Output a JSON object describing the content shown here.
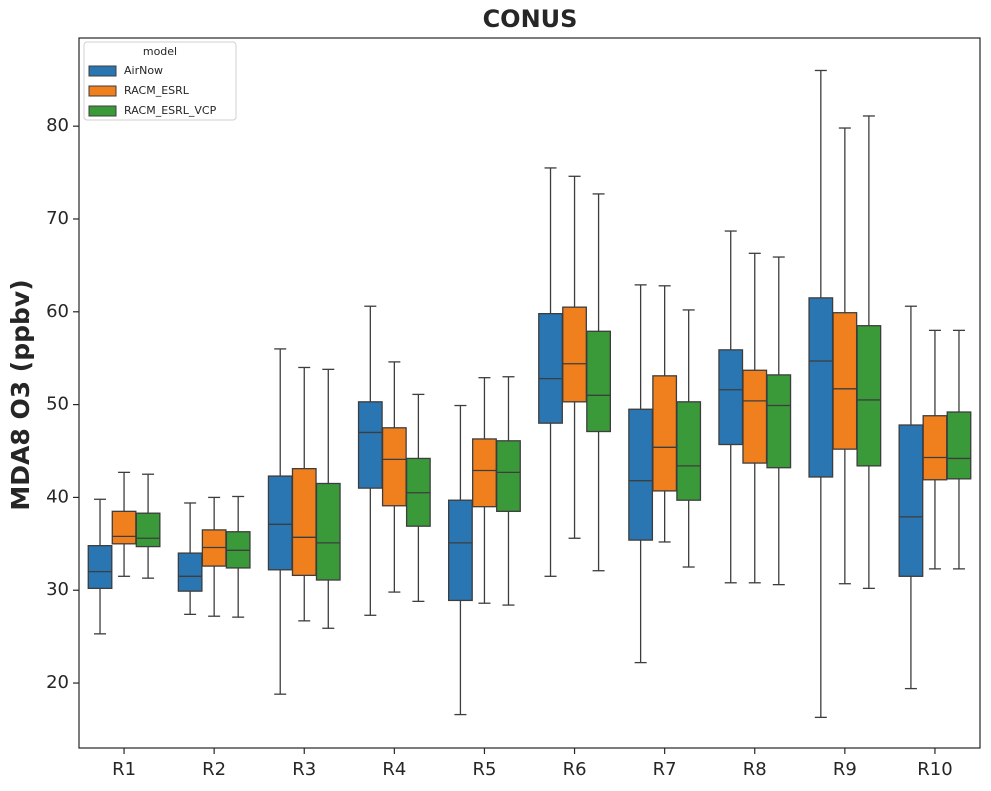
{
  "chart_data": {
    "type": "box",
    "title": "CONUS",
    "ylabel": "MDA8 O3 (ppbv)",
    "legend_title": "model",
    "legend_loc": "upper left",
    "categories": [
      "R1",
      "R2",
      "R3",
      "R4",
      "R5",
      "R6",
      "R7",
      "R8",
      "R9",
      "R10"
    ],
    "ylim": [
      13.0,
      89.5
    ],
    "yticks": [
      20,
      30,
      40,
      50,
      60,
      70,
      80
    ],
    "series": [
      {
        "name": "AirNow",
        "color": "#2a76b2",
        "boxes": [
          {
            "whislo": 25.3,
            "q1": 30.2,
            "med": 32.0,
            "q3": 34.8,
            "whishi": 39.8
          },
          {
            "whislo": 27.4,
            "q1": 29.9,
            "med": 31.5,
            "q3": 34.0,
            "whishi": 39.4
          },
          {
            "whislo": 18.8,
            "q1": 32.2,
            "med": 37.1,
            "q3": 42.3,
            "whishi": 56.0
          },
          {
            "whislo": 27.3,
            "q1": 41.0,
            "med": 47.0,
            "q3": 50.3,
            "whishi": 60.6
          },
          {
            "whislo": 16.6,
            "q1": 28.9,
            "med": 35.1,
            "q3": 39.7,
            "whishi": 49.9
          },
          {
            "whislo": 31.5,
            "q1": 48.0,
            "med": 52.8,
            "q3": 59.8,
            "whishi": 75.5
          },
          {
            "whislo": 22.2,
            "q1": 35.4,
            "med": 41.8,
            "q3": 49.5,
            "whishi": 62.9
          },
          {
            "whislo": 30.8,
            "q1": 45.7,
            "med": 51.6,
            "q3": 55.9,
            "whishi": 68.7
          },
          {
            "whislo": 16.3,
            "q1": 42.2,
            "med": 54.7,
            "q3": 61.5,
            "whishi": 86.0
          },
          {
            "whislo": 19.4,
            "q1": 31.5,
            "med": 37.9,
            "q3": 47.8,
            "whishi": 60.6
          }
        ]
      },
      {
        "name": "RACM_ESRL",
        "color": "#f0801e",
        "boxes": [
          {
            "whislo": 31.5,
            "q1": 35.0,
            "med": 35.8,
            "q3": 38.5,
            "whishi": 42.7
          },
          {
            "whislo": 27.2,
            "q1": 32.6,
            "med": 34.6,
            "q3": 36.5,
            "whishi": 40.0
          },
          {
            "whislo": 26.7,
            "q1": 31.6,
            "med": 35.7,
            "q3": 43.1,
            "whishi": 54.0
          },
          {
            "whislo": 29.8,
            "q1": 39.1,
            "med": 44.1,
            "q3": 47.5,
            "whishi": 54.6
          },
          {
            "whislo": 28.6,
            "q1": 39.0,
            "med": 42.9,
            "q3": 46.3,
            "whishi": 52.9
          },
          {
            "whislo": 35.6,
            "q1": 50.3,
            "med": 54.4,
            "q3": 60.5,
            "whishi": 74.6
          },
          {
            "whislo": 35.2,
            "q1": 40.7,
            "med": 45.4,
            "q3": 53.1,
            "whishi": 62.8
          },
          {
            "whislo": 30.8,
            "q1": 43.7,
            "med": 50.4,
            "q3": 53.7,
            "whishi": 66.3
          },
          {
            "whislo": 30.7,
            "q1": 45.2,
            "med": 51.7,
            "q3": 59.9,
            "whishi": 79.8
          },
          {
            "whislo": 32.3,
            "q1": 41.9,
            "med": 44.3,
            "q3": 48.8,
            "whishi": 58.0
          }
        ]
      },
      {
        "name": "RACM_ESRL_VCP",
        "color": "#3a9a3a",
        "boxes": [
          {
            "whislo": 31.3,
            "q1": 34.7,
            "med": 35.6,
            "q3": 38.3,
            "whishi": 42.5
          },
          {
            "whislo": 27.1,
            "q1": 32.4,
            "med": 34.3,
            "q3": 36.3,
            "whishi": 40.1
          },
          {
            "whislo": 25.9,
            "q1": 31.1,
            "med": 35.1,
            "q3": 41.5,
            "whishi": 53.8
          },
          {
            "whislo": 28.8,
            "q1": 36.9,
            "med": 40.5,
            "q3": 44.2,
            "whishi": 51.1
          },
          {
            "whislo": 28.4,
            "q1": 38.5,
            "med": 42.7,
            "q3": 46.1,
            "whishi": 53.0
          },
          {
            "whislo": 32.1,
            "q1": 47.1,
            "med": 51.0,
            "q3": 57.9,
            "whishi": 72.7
          },
          {
            "whislo": 32.5,
            "q1": 39.7,
            "med": 43.4,
            "q3": 50.3,
            "whishi": 60.2
          },
          {
            "whislo": 30.6,
            "q1": 43.2,
            "med": 49.9,
            "q3": 53.2,
            "whishi": 65.9
          },
          {
            "whislo": 30.2,
            "q1": 43.4,
            "med": 50.5,
            "q3": 58.5,
            "whishi": 81.1
          },
          {
            "whislo": 32.3,
            "q1": 42.0,
            "med": 44.2,
            "q3": 49.2,
            "whishi": 58.0
          }
        ]
      }
    ]
  }
}
